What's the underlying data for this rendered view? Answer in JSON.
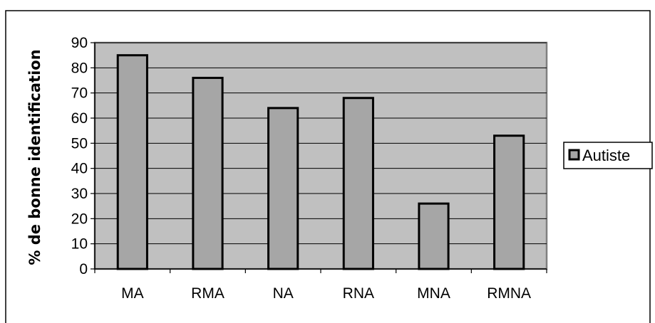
{
  "chart_data": {
    "type": "bar",
    "categories": [
      "MA",
      "RMA",
      "NA",
      "RNA",
      "MNA",
      "RMNA"
    ],
    "series": [
      {
        "name": "Autiste",
        "values": [
          85,
          76,
          64,
          68,
          26,
          53
        ]
      }
    ],
    "title": "",
    "xlabel": "",
    "ylabel": "% de bonne identification",
    "ylim": [
      0,
      90
    ],
    "ytick_step": 10,
    "grid": true,
    "legend_position": "right",
    "colors": {
      "bar_fill": "#a6a6a6",
      "bar_stroke": "#000000",
      "plot_background": "#c0c0c0",
      "plot_border": "#808080",
      "gridline": "#000000",
      "page_background": "#ffffff"
    }
  }
}
